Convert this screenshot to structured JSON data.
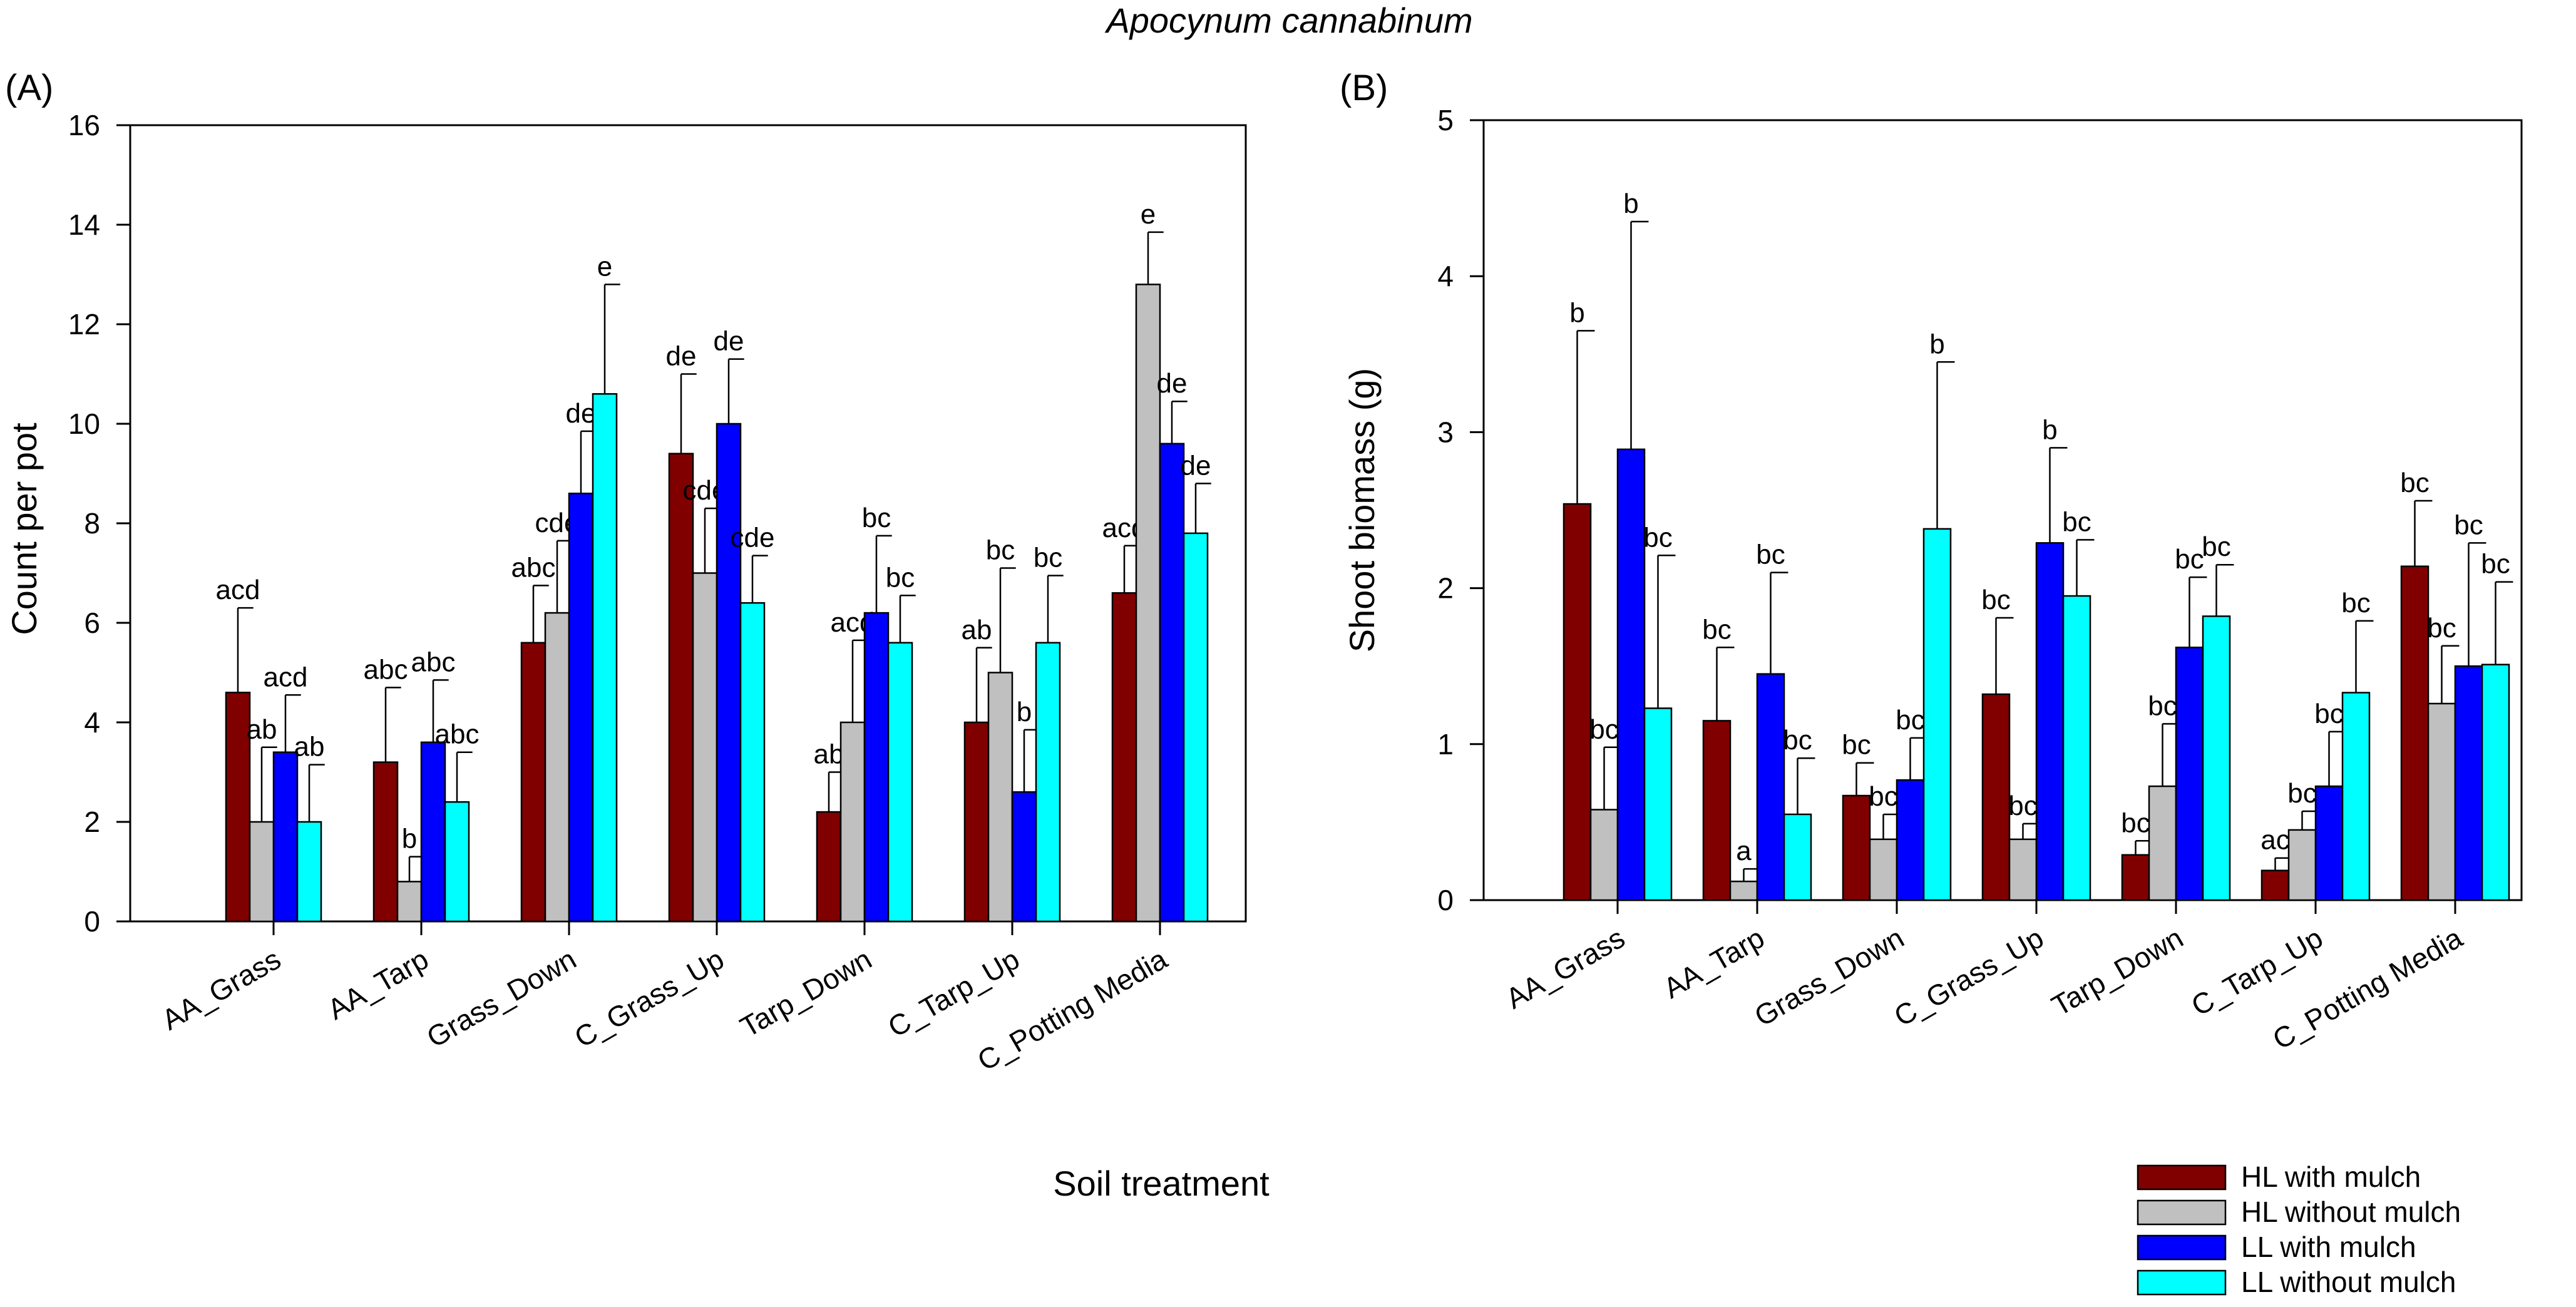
{
  "figure_title": "Apocynum cannabinum",
  "shared_xlabel": "Soil treatment",
  "colors": {
    "HL with mulch": "#800000",
    "HL without mulch": "#c0c0c0",
    "LL with mulch": "#0000ff",
    "LL without mulch": "#00ffff"
  },
  "legend": [
    "HL with mulch",
    "HL without mulch",
    "LL with mulch",
    "LL without mulch"
  ],
  "chart_data": [
    {
      "type": "bar",
      "panel": "(A)",
      "title": "",
      "ylabel": "Count per pot",
      "xlabel": "Soil treatment",
      "ylim": [
        0,
        16
      ],
      "yticks": [
        0,
        2,
        4,
        6,
        8,
        10,
        12,
        14,
        16
      ],
      "categories": [
        "AA_Grass",
        "AA_Tarp",
        "Grass_Down",
        "C_Grass_Up",
        "Tarp_Down",
        "C_Tarp_Up",
        "C_Potting Media"
      ],
      "series": [
        {
          "name": "HL with mulch",
          "values": [
            4.6,
            3.2,
            5.6,
            9.4,
            2.2,
            4.0,
            6.6
          ],
          "errors": [
            1.7,
            1.5,
            1.15,
            1.6,
            0.8,
            1.5,
            0.95
          ],
          "letters": [
            "acd",
            "abc",
            "abc",
            "de",
            "ab",
            "ab",
            "acd"
          ]
        },
        {
          "name": "HL without mulch",
          "values": [
            2.0,
            0.8,
            6.2,
            7.0,
            4.0,
            5.0,
            12.8
          ],
          "errors": [
            1.5,
            0.5,
            1.45,
            1.3,
            1.65,
            2.1,
            1.05
          ],
          "letters": [
            "ab",
            "b",
            "cde",
            "cde",
            "acd",
            "bc",
            "e"
          ]
        },
        {
          "name": "LL with mulch",
          "values": [
            3.4,
            3.6,
            8.6,
            10.0,
            6.2,
            2.6,
            9.6
          ],
          "errors": [
            1.15,
            1.25,
            1.25,
            1.3,
            1.55,
            1.25,
            0.85
          ],
          "letters": [
            "acd",
            "abc",
            "de",
            "de",
            "bc",
            "b",
            "de"
          ]
        },
        {
          "name": "LL without mulch",
          "values": [
            2.0,
            2.4,
            10.6,
            6.4,
            5.6,
            5.6,
            7.8
          ],
          "errors": [
            1.15,
            1.0,
            2.2,
            0.95,
            0.95,
            1.35,
            1.0
          ],
          "letters": [
            "ab",
            "abc",
            "e",
            "cde",
            "bc",
            "bc",
            "de"
          ]
        }
      ]
    },
    {
      "type": "bar",
      "panel": "(B)",
      "title": "",
      "ylabel": "Shoot biomass (g)",
      "xlabel": "Soil treatment",
      "ylim": [
        0,
        5
      ],
      "yticks": [
        0,
        1,
        2,
        3,
        4,
        5
      ],
      "categories": [
        "AA_Grass",
        "AA_Tarp",
        "Grass_Down",
        "C_Grass_Up",
        "Tarp_Down",
        "C_Tarp_Up",
        "C_Potting Media"
      ],
      "series": [
        {
          "name": "HL with mulch",
          "values": [
            2.54,
            1.15,
            0.67,
            1.32,
            0.29,
            0.19,
            2.14
          ],
          "errors": [
            1.11,
            0.47,
            0.21,
            0.49,
            0.09,
            0.08,
            0.42
          ],
          "letters": [
            "b",
            "bc",
            "bc",
            "bc",
            "bc",
            "ac",
            "bc"
          ]
        },
        {
          "name": "HL without mulch",
          "values": [
            0.58,
            0.12,
            0.39,
            0.39,
            0.73,
            0.45,
            1.26
          ],
          "errors": [
            0.4,
            0.08,
            0.16,
            0.1,
            0.4,
            0.12,
            0.37
          ],
          "letters": [
            "bc",
            "a",
            "bc",
            "bc",
            "bc",
            "bc",
            "bc"
          ]
        },
        {
          "name": "LL with mulch",
          "values": [
            2.89,
            1.45,
            0.77,
            2.29,
            1.62,
            0.73,
            1.5
          ],
          "errors": [
            1.46,
            0.65,
            0.27,
            0.61,
            0.45,
            0.35,
            0.79
          ],
          "letters": [
            "b",
            "bc",
            "bc",
            "b",
            "bc",
            "bc",
            "bc"
          ]
        },
        {
          "name": "LL without mulch",
          "values": [
            1.23,
            0.55,
            2.38,
            1.95,
            1.82,
            1.33,
            1.51
          ],
          "errors": [
            0.98,
            0.36,
            1.07,
            0.36,
            0.33,
            0.46,
            0.53
          ],
          "letters": [
            "bc",
            "bc",
            "b",
            "bc",
            "bc",
            "bc",
            "bc"
          ]
        }
      ]
    }
  ]
}
